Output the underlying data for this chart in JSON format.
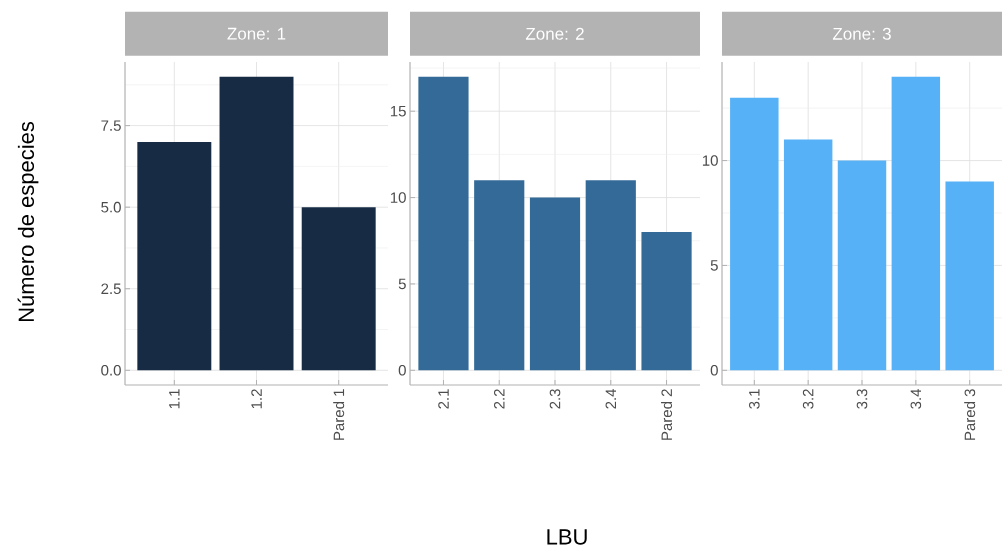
{
  "chart_data": [
    {
      "type": "bar",
      "title": "Zone: 1",
      "ylabel": "Número de especies",
      "categories": [
        "1.1",
        "1.2",
        "Pared 1"
      ],
      "values": [
        7,
        9,
        5
      ],
      "color": "#172b44",
      "ylim": [
        -0.45,
        9.45
      ],
      "yticks": [
        {
          "value": 0,
          "label": "0.0"
        },
        {
          "value": 2.5,
          "label": "2.5"
        },
        {
          "value": 5,
          "label": "5.0"
        },
        {
          "value": 7.5,
          "label": "7.5"
        }
      ],
      "grid": true
    },
    {
      "type": "bar",
      "title": "Zone: 2",
      "xlabel": "LBU",
      "categories": [
        "2.1",
        "2.2",
        "2.3",
        "2.4",
        "Pared 2"
      ],
      "values": [
        17,
        11,
        10,
        11,
        8
      ],
      "color": "#336a97",
      "ylim": [
        -0.85,
        17.85
      ],
      "yticks": [
        0,
        5,
        10,
        15
      ],
      "grid": true
    },
    {
      "type": "bar",
      "title": "Zone: 3",
      "categories": [
        "3.1",
        "3.2",
        "3.3",
        "3.4",
        "Pared 3"
      ],
      "values": [
        13,
        11,
        10,
        14,
        9
      ],
      "color": "#56b1f6",
      "ylim": [
        -0.7,
        14.7
      ],
      "yticks": [
        0,
        5,
        10
      ],
      "grid": true
    }
  ]
}
